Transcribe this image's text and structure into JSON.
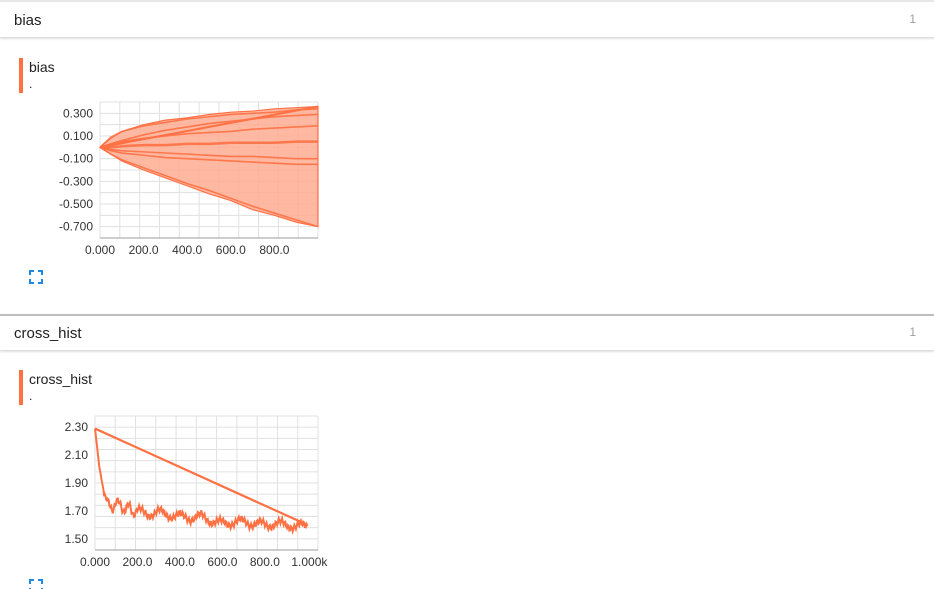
{
  "sections": [
    {
      "title": "bias",
      "count": "1",
      "card": {
        "title": "bias",
        "subtitle": "."
      }
    },
    {
      "title": "cross_hist",
      "count": "1",
      "card": {
        "title": "cross_hist",
        "subtitle": "."
      }
    }
  ],
  "colors": {
    "accent": "#ff7043",
    "band": "#ffab91",
    "grid": "#e0e0e0",
    "expand": "#1e88e5"
  },
  "icons": {
    "expand": "fullscreen-icon"
  },
  "chart_data": [
    {
      "type": "area",
      "xlim": [
        0,
        1000
      ],
      "ylim": [
        -0.8,
        0.4
      ],
      "xticks": [
        0,
        200,
        400,
        600,
        800
      ],
      "xtick_labels": [
        "0.000",
        "200.0",
        "400.0",
        "600.0",
        "800.0"
      ],
      "yticks": [
        0.3,
        0.1,
        -0.1,
        -0.3,
        -0.5,
        -0.7
      ],
      "ytick_labels": [
        "0.300",
        "0.100",
        "-0.100",
        "-0.300",
        "-0.500",
        "-0.700"
      ],
      "x": [
        0,
        50,
        100,
        200,
        300,
        400,
        500,
        600,
        700,
        800,
        900,
        1000
      ],
      "band_upper": [
        0.0,
        0.08,
        0.14,
        0.2,
        0.24,
        0.26,
        0.29,
        0.31,
        0.32,
        0.34,
        0.35,
        0.36
      ],
      "band_lower": [
        0.0,
        -0.06,
        -0.12,
        -0.2,
        -0.27,
        -0.34,
        -0.41,
        -0.47,
        -0.55,
        -0.6,
        -0.66,
        -0.7
      ],
      "lines": [
        [
          0.0,
          0.09,
          0.14,
          0.19,
          0.22,
          0.25,
          0.27,
          0.29,
          0.3,
          0.31,
          0.33,
          0.34
        ],
        [
          0.0,
          0.03,
          0.06,
          0.11,
          0.15,
          0.18,
          0.21,
          0.23,
          0.25,
          0.27,
          0.28,
          0.29
        ],
        [
          0.0,
          0.03,
          0.05,
          0.08,
          0.1,
          0.12,
          0.13,
          0.14,
          0.16,
          0.17,
          0.18,
          0.19
        ],
        [
          0.0,
          0.0,
          0.01,
          0.02,
          0.02,
          0.03,
          0.03,
          0.04,
          0.04,
          0.04,
          0.05,
          0.05
        ],
        [
          0.0,
          -0.02,
          -0.03,
          -0.04,
          -0.05,
          -0.06,
          -0.07,
          -0.08,
          -0.08,
          -0.09,
          -0.1,
          -0.1
        ],
        [
          0.0,
          -0.03,
          -0.05,
          -0.07,
          -0.09,
          -0.1,
          -0.11,
          -0.12,
          -0.13,
          -0.14,
          -0.15,
          -0.15
        ],
        [
          0.0,
          -0.06,
          -0.11,
          -0.18,
          -0.25,
          -0.32,
          -0.38,
          -0.45,
          -0.52,
          -0.58,
          -0.64,
          -0.7
        ]
      ],
      "wrap_line": [
        [
          0,
          0.0
        ],
        [
          1000,
          0.36
        ]
      ]
    },
    {
      "type": "line",
      "xlim": [
        0,
        1050
      ],
      "ylim": [
        1.42,
        2.38
      ],
      "xticks": [
        0,
        200,
        400,
        600,
        800,
        1000
      ],
      "xtick_labels": [
        "0.000",
        "200.0",
        "400.0",
        "600.0",
        "800.0",
        "1.000k"
      ],
      "yticks": [
        2.3,
        2.1,
        1.9,
        1.7,
        1.5
      ],
      "ytick_labels": [
        "2.30",
        "2.10",
        "1.90",
        "1.70",
        "1.50"
      ],
      "x": [
        0,
        10,
        20,
        30,
        40,
        50,
        60,
        80,
        100,
        120,
        140,
        160,
        180,
        200,
        250,
        300,
        350,
        400,
        450,
        500,
        550,
        600,
        650,
        700,
        750,
        800,
        850,
        900,
        950,
        1000
      ],
      "y": [
        2.29,
        2.16,
        2.02,
        1.93,
        1.85,
        1.8,
        1.75,
        1.72,
        1.76,
        1.74,
        1.71,
        1.73,
        1.69,
        1.7,
        1.68,
        1.69,
        1.67,
        1.66,
        1.65,
        1.66,
        1.63,
        1.61,
        1.62,
        1.62,
        1.61,
        1.6,
        1.61,
        1.6,
        1.59,
        1.59
      ],
      "wrap_line": [
        [
          0,
          2.29
        ],
        [
          1000,
          1.6
        ]
      ]
    }
  ]
}
